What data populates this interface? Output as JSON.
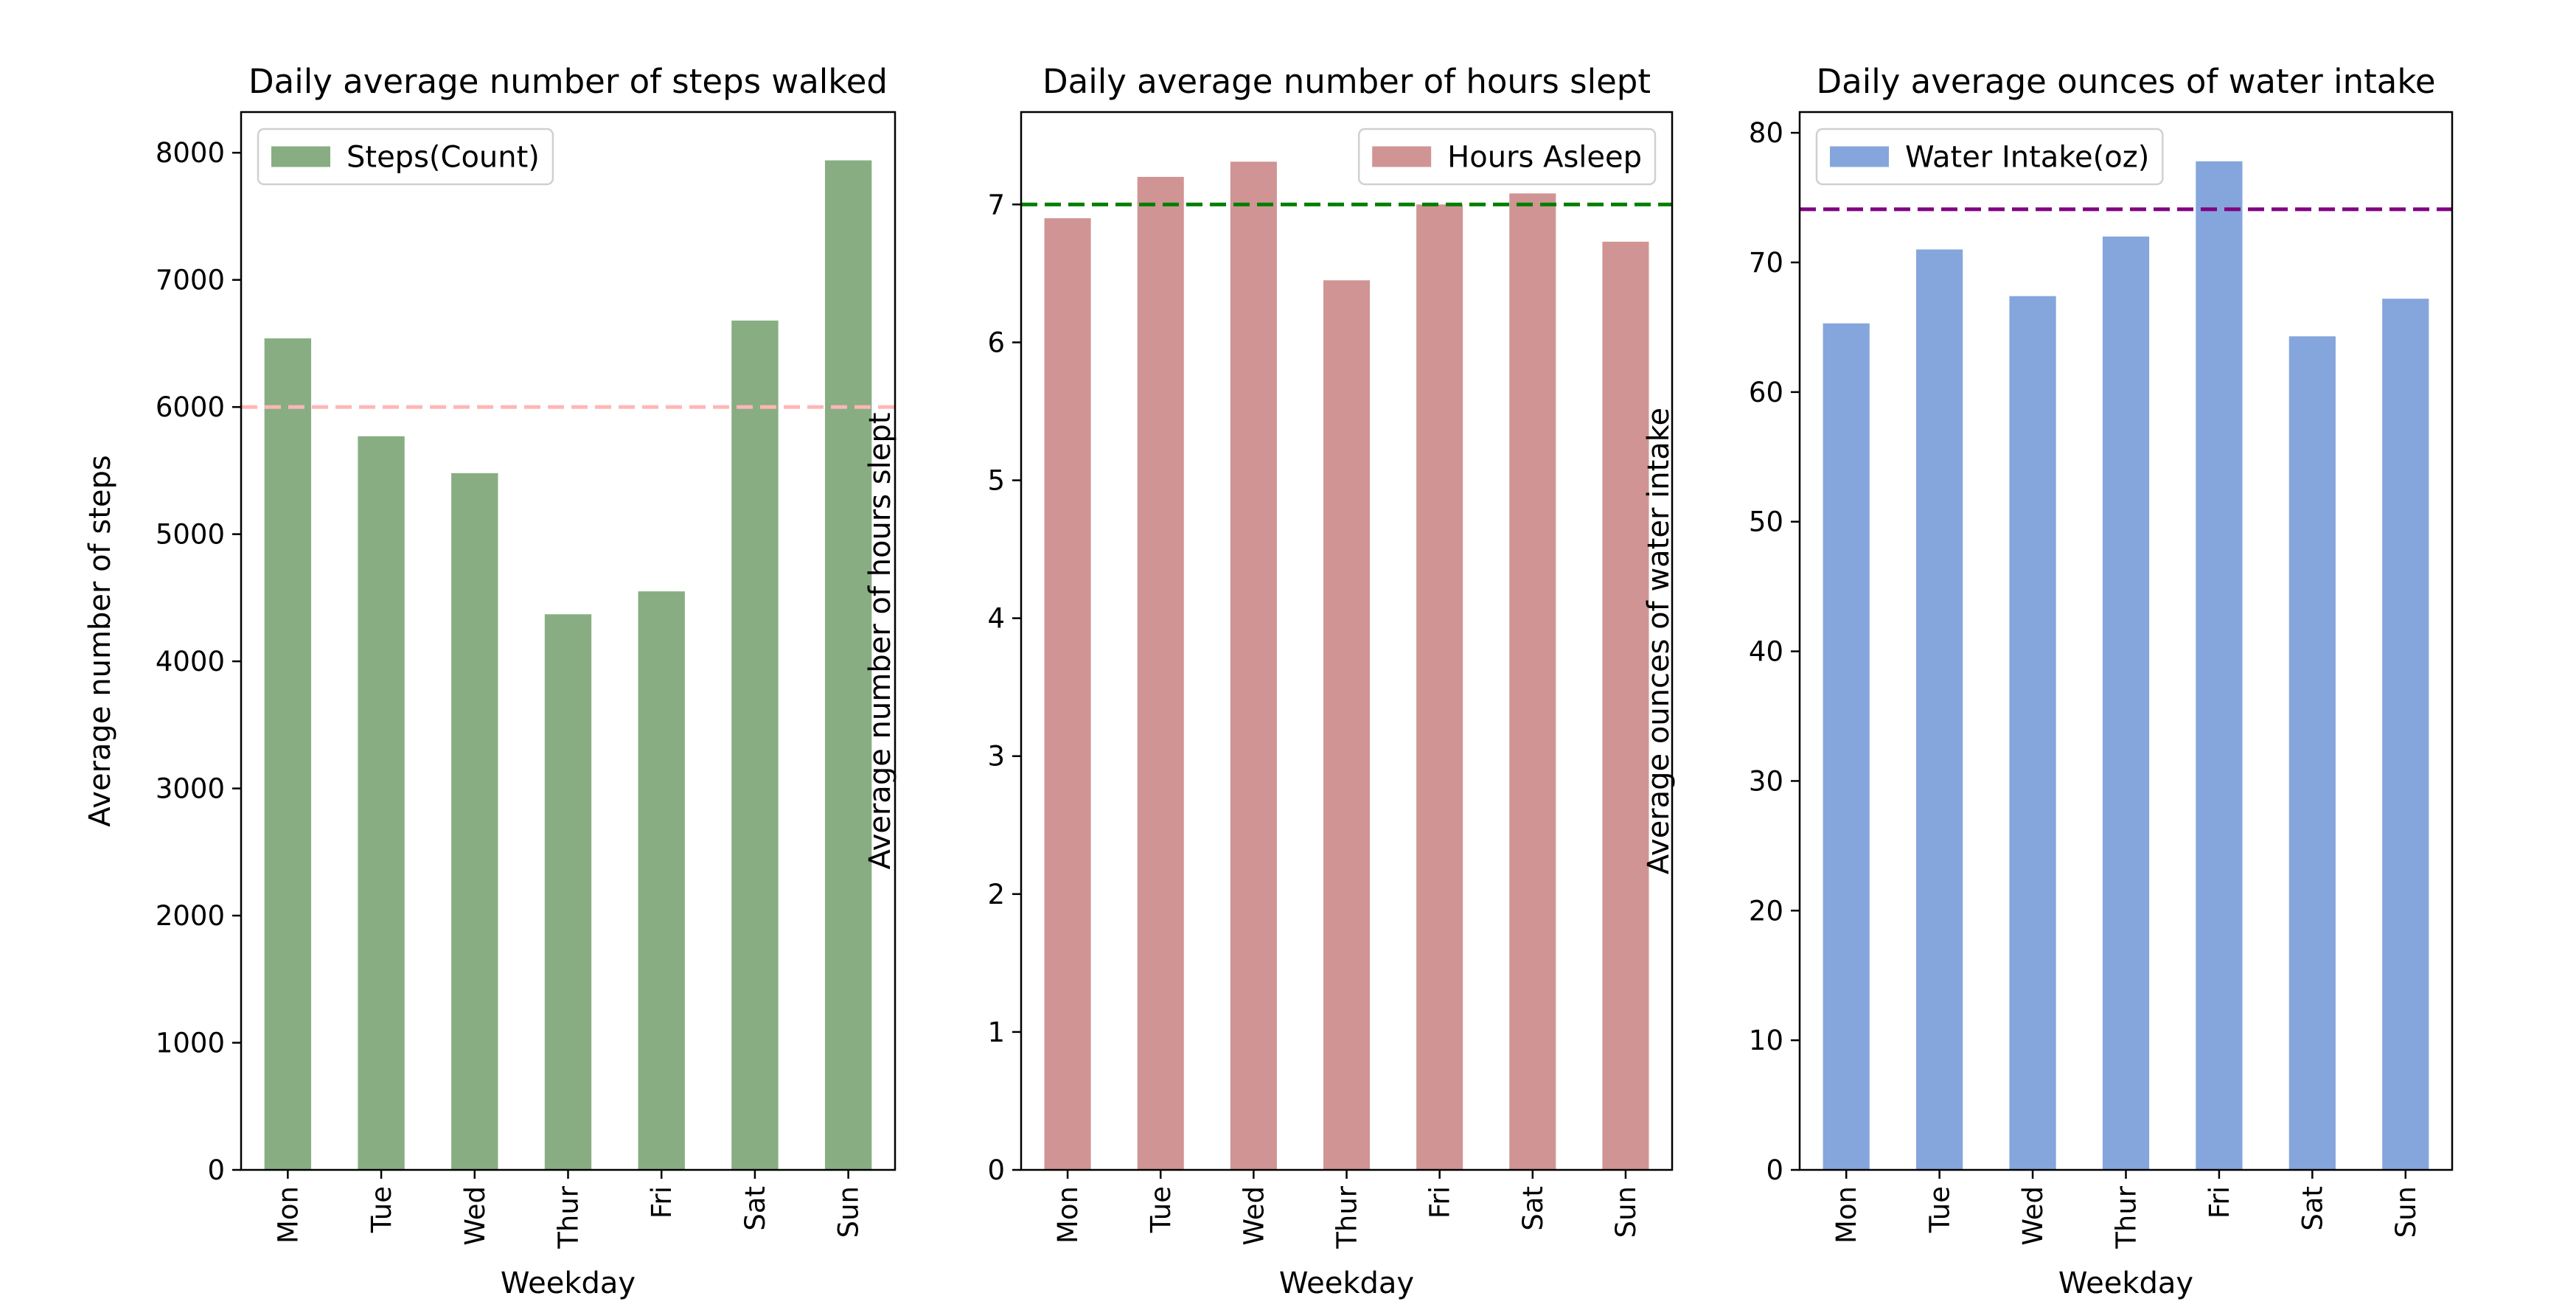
{
  "chart_data": [
    {
      "type": "bar",
      "title": "Daily average number of steps walked",
      "xlabel": "Weekday",
      "ylabel": "Average number of steps",
      "categories": [
        "Mon",
        "Tue",
        "Wed",
        "Thur",
        "Fri",
        "Sat",
        "Sun"
      ],
      "series": [
        {
          "name": "Steps(Count)",
          "color": "#88ad83",
          "values": [
            6540,
            5770,
            5480,
            4370,
            4550,
            6680,
            7940
          ]
        }
      ],
      "reference_line": {
        "value": 6000,
        "color": "#ffb6b6",
        "style": "dashed"
      },
      "ylim": [
        0,
        8320
      ],
      "yticks": [
        0,
        1000,
        2000,
        3000,
        4000,
        5000,
        6000,
        7000,
        8000
      ],
      "legend": "upper left",
      "grid": false
    },
    {
      "type": "bar",
      "title": "Daily average number of hours slept",
      "xlabel": "Weekday",
      "ylabel": "Average number of hours slept",
      "categories": [
        "Mon",
        "Tue",
        "Wed",
        "Thur",
        "Fri",
        "Sat",
        "Sun"
      ],
      "series": [
        {
          "name": "Hours Asleep",
          "color": "#d09494",
          "values": [
            6.9,
            7.2,
            7.31,
            6.45,
            7.0,
            7.08,
            6.73
          ]
        }
      ],
      "reference_line": {
        "value": 7.0,
        "color": "#008000",
        "style": "dashed"
      },
      "ylim": [
        0,
        7.67
      ],
      "yticks": [
        0,
        1,
        2,
        3,
        4,
        5,
        6,
        7
      ],
      "legend": "upper right",
      "grid": false
    },
    {
      "type": "bar",
      "title": "Daily average ounces of water intake",
      "xlabel": "Weekday",
      "ylabel": "Average ounces of water intake",
      "categories": [
        "Mon",
        "Tue",
        "Wed",
        "Thur",
        "Fri",
        "Sat",
        "Sun"
      ],
      "series": [
        {
          "name": "Water Intake(oz)",
          "color": "#85a6dc",
          "values": [
            65.3,
            71.0,
            67.4,
            72.0,
            77.8,
            64.3,
            67.2
          ]
        }
      ],
      "reference_line": {
        "value": 74.1,
        "color": "#800080",
        "style": "dashed"
      },
      "ylim": [
        0,
        81.6
      ],
      "yticks": [
        0,
        10,
        20,
        30,
        40,
        50,
        60,
        70,
        80
      ],
      "legend": "upper left",
      "grid": false
    }
  ]
}
